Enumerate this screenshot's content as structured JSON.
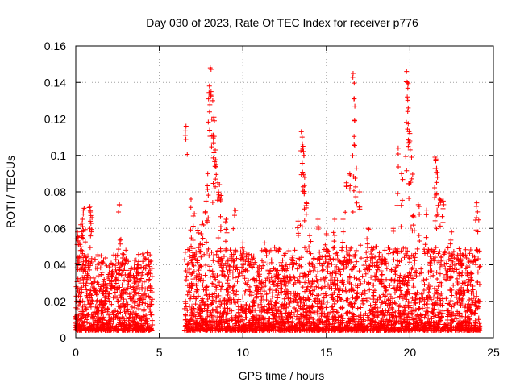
{
  "chart_data": {
    "type": "scatter",
    "title": "Day 030 of 2023, Rate Of TEC Index for receiver p776",
    "xlabel": "GPS time / hours",
    "ylabel": "ROTI / TECUs",
    "xlim": [
      0,
      25
    ],
    "ylim": [
      0,
      0.16
    ],
    "x_ticks": [
      "0",
      "5",
      "10",
      "15",
      "20",
      "25"
    ],
    "y_ticks": [
      "0",
      "0.02",
      "0.04",
      "0.06",
      "0.08",
      "0.1",
      "0.12",
      "0.14",
      "0.16"
    ],
    "grid": true,
    "marker": "+",
    "marker_color": "#ff0000",
    "series": [
      {
        "points": [
          [
            0.0,
            0.008
          ],
          [
            0.05,
            0.012
          ],
          [
            0.1,
            0.058
          ],
          [
            0.15,
            0.055
          ],
          [
            0.2,
            0.052
          ],
          [
            0.3,
            0.062
          ],
          [
            0.35,
            0.048
          ],
          [
            0.4,
            0.065
          ],
          [
            0.45,
            0.07
          ],
          [
            0.5,
            0.071
          ],
          [
            0.6,
            0.044
          ],
          [
            0.7,
            0.035
          ],
          [
            0.8,
            0.07
          ],
          [
            0.85,
            0.072
          ],
          [
            0.9,
            0.067
          ],
          [
            1.0,
            0.03
          ],
          [
            1.2,
            0.026
          ],
          [
            1.5,
            0.028
          ],
          [
            1.7,
            0.032
          ],
          [
            1.8,
            0.027
          ],
          [
            2.0,
            0.036
          ],
          [
            2.2,
            0.04
          ],
          [
            2.4,
            0.045
          ],
          [
            2.6,
            0.073
          ],
          [
            2.7,
            0.054
          ],
          [
            2.8,
            0.046
          ],
          [
            3.0,
            0.048
          ],
          [
            3.2,
            0.035
          ],
          [
            3.5,
            0.03
          ],
          [
            3.7,
            0.04
          ],
          [
            4.0,
            0.046
          ],
          [
            4.3,
            0.047
          ],
          [
            4.5,
            0.042
          ],
          [
            6.6,
            0.116
          ],
          [
            6.9,
            0.076
          ],
          [
            7.1,
            0.068
          ],
          [
            7.3,
            0.059
          ],
          [
            7.5,
            0.057
          ],
          [
            7.6,
            0.063
          ],
          [
            7.8,
            0.075
          ],
          [
            7.9,
            0.09
          ],
          [
            8.0,
            0.138
          ],
          [
            8.05,
            0.148
          ],
          [
            8.1,
            0.135
          ],
          [
            8.2,
            0.13
          ],
          [
            8.25,
            0.12
          ],
          [
            8.3,
            0.119
          ],
          [
            8.35,
            0.103
          ],
          [
            8.4,
            0.095
          ],
          [
            8.5,
            0.085
          ],
          [
            8.6,
            0.084
          ],
          [
            8.7,
            0.078
          ],
          [
            9.0,
            0.065
          ],
          [
            9.5,
            0.07
          ],
          [
            10.0,
            0.052
          ],
          [
            10.5,
            0.045
          ],
          [
            11.0,
            0.038
          ],
          [
            11.3,
            0.052
          ],
          [
            12.0,
            0.036
          ],
          [
            12.5,
            0.034
          ],
          [
            13.0,
            0.045
          ],
          [
            13.3,
            0.064
          ],
          [
            13.5,
            0.113
          ],
          [
            13.55,
            0.11
          ],
          [
            13.6,
            0.105
          ],
          [
            13.65,
            0.1
          ],
          [
            13.7,
            0.088
          ],
          [
            13.8,
            0.074
          ],
          [
            14.0,
            0.056
          ],
          [
            14.5,
            0.065
          ],
          [
            15.0,
            0.057
          ],
          [
            15.5,
            0.065
          ],
          [
            16.0,
            0.065
          ],
          [
            16.2,
            0.085
          ],
          [
            16.4,
            0.09
          ],
          [
            16.6,
            0.145
          ],
          [
            16.65,
            0.131
          ],
          [
            16.7,
            0.119
          ],
          [
            16.8,
            0.093
          ],
          [
            17.0,
            0.08
          ],
          [
            17.5,
            0.06
          ],
          [
            18.0,
            0.05
          ],
          [
            18.5,
            0.048
          ],
          [
            19.0,
            0.06
          ],
          [
            19.3,
            0.104
          ],
          [
            19.5,
            0.09
          ],
          [
            19.8,
            0.146
          ],
          [
            19.85,
            0.14
          ],
          [
            19.9,
            0.126
          ],
          [
            19.95,
            0.113
          ],
          [
            20.0,
            0.112
          ],
          [
            20.1,
            0.099
          ],
          [
            20.2,
            0.067
          ],
          [
            20.5,
            0.073
          ],
          [
            21.0,
            0.07
          ],
          [
            21.5,
            0.099
          ],
          [
            21.55,
            0.097
          ],
          [
            21.6,
            0.093
          ],
          [
            21.65,
            0.088
          ],
          [
            21.8,
            0.076
          ],
          [
            22.0,
            0.075
          ],
          [
            22.5,
            0.058
          ],
          [
            23.0,
            0.046
          ],
          [
            23.5,
            0.032
          ],
          [
            24.0,
            0.074
          ],
          [
            24.05,
            0.069
          ],
          [
            24.1,
            0.02
          ]
        ]
      }
    ],
    "density_segments": [
      {
        "x_start": 0.0,
        "x_end": 4.6,
        "y_floor": 0.004,
        "y_typical": 0.022
      },
      {
        "x_start": 6.5,
        "x_end": 24.2,
        "y_floor": 0.004,
        "y_typical": 0.024
      }
    ]
  }
}
